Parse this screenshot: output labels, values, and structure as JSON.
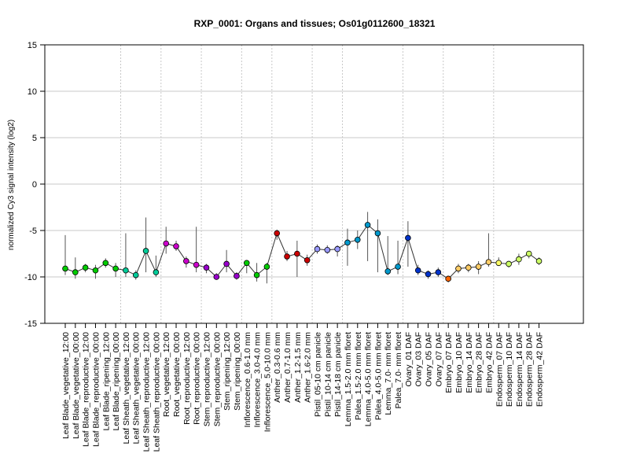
{
  "chart_data": {
    "type": "line",
    "title": "RXP_0001: Organs and tissues; Os01g0112600_18321",
    "xlabel": "",
    "ylabel": "normalized Cy3 signal intensity (log2)",
    "ylim": [
      -15,
      15
    ],
    "yticks": [
      -15,
      -10,
      -5,
      0,
      5,
      10,
      15
    ],
    "grid": true,
    "categories": [
      "Leaf Blade_vegetative_12:00",
      "Leaf Blade_vegetative_00:00",
      "Leaf Blade_reproductive_12:00",
      "Leaf Blade_reproductive_00:00",
      "Leaf Blade_ripening_12:00",
      "Leaf Blade_ripening_00:00",
      "Leaf Sheath_vegetative_12:00",
      "Leaf Sheath_vegetative_00:00",
      "Leaf Sheath_reproductive_12:00",
      "Leaf Sheath_reproductive_00:00",
      "Root_vegetative_12:00",
      "Root_vegetative_00:00",
      "Root_reproductive_12:00",
      "Root_reproductive_00:00",
      "Stem_reproductive_12:00",
      "Stem_reproductive_00:00",
      "Stem_ripening_12:00",
      "Stem_ripening_00:00",
      "Inflorescence_0.6-1.0 mm",
      "Inflorescence_3.0-4.0 mm",
      "Inflorescence_5.0-10.0 mm",
      "Anther_0.3-0.6 mm",
      "Anther_0.7-1.0 mm",
      "Anther_1.2-1.5 mm",
      "Anther_1.6-2.0 mm",
      "Pistil_05-10 cm panicle",
      "Pistil_10-14 cm panicle",
      "Pistil_14-18 cm panicle",
      "Lemma_1.5-2.0 mm floret",
      "Palea_1.5-2.0 mm floret",
      "Lemma_4.0-5.0 mm floret",
      "Palea_4.0-5.0 mm floret",
      "Lemma_7.0- mm floret",
      "Palea_7.0- mm floret",
      "Ovary_01 DAF",
      "Ovary_03 DAF",
      "Ovary_05 DAF",
      "Ovary_07 DAF",
      "Embryo_07 DAF",
      "Embryo_10 DAF",
      "Embryo_14 DAF",
      "Embryo_28 DAF",
      "Embryo_42 DAF",
      "Endosperm_07 DAF",
      "Endosperm_10 DAF",
      "Endosperm_14 DAF",
      "Endosperm_28 DAF",
      "Endosperm_42 DAF"
    ],
    "values": [
      -9.1,
      -9.5,
      -9.0,
      -9.3,
      -8.5,
      -9.1,
      -9.3,
      -9.8,
      -7.2,
      -9.5,
      -6.4,
      -6.7,
      -8.3,
      -8.7,
      -9.0,
      -10.0,
      -8.6,
      -9.9,
      -8.5,
      -9.8,
      -8.9,
      -5.3,
      -7.8,
      -7.5,
      -8.2,
      -7.0,
      -7.1,
      -7.0,
      -6.3,
      -6.0,
      -4.4,
      -5.3,
      -9.4,
      -8.9,
      -5.8,
      -9.3,
      -9.7,
      -9.5,
      -10.2,
      -9.1,
      -9.0,
      -8.9,
      -8.4,
      -8.5,
      -8.6,
      -8.1,
      -7.5,
      -8.3
    ],
    "err_low": [
      -9.8,
      -10.2,
      -9.5,
      -10.2,
      -9.0,
      -10.0,
      -10.0,
      -10.3,
      -9.5,
      -10.0,
      -7.5,
      -7.2,
      -9.0,
      -9.5,
      -9.6,
      -10.3,
      -9.5,
      -10.3,
      -9.6,
      -10.5,
      -10.7,
      -6.0,
      -8.3,
      -10.0,
      -8.8,
      -7.5,
      -7.5,
      -7.8,
      -8.8,
      -7.0,
      -8.3,
      -9.5,
      -9.8,
      -9.7,
      -8.9,
      -9.8,
      -10.2,
      -10.0,
      -10.6,
      -9.6,
      -9.5,
      -9.7,
      -8.9,
      -8.8,
      -9.0,
      -8.7,
      -8.0,
      -8.7
    ],
    "err_high": [
      -5.5,
      -7.9,
      -8.6,
      -8.7,
      -8.0,
      -8.5,
      -5.3,
      -9.3,
      -3.6,
      -7.7,
      -4.6,
      -6.1,
      -7.8,
      -4.6,
      -8.6,
      -9.6,
      -7.1,
      -9.5,
      -8.2,
      -8.5,
      -8.5,
      -4.9,
      -7.2,
      -6.1,
      -7.6,
      -6.5,
      -6.6,
      -6.6,
      -4.8,
      -5.0,
      -3.0,
      -3.8,
      -5.6,
      -6.1,
      -4.0,
      -8.7,
      -9.3,
      -9.0,
      -9.9,
      -8.6,
      -8.6,
      -8.3,
      -5.3,
      -7.9,
      -8.3,
      -7.5,
      -7.2,
      -7.9
    ],
    "point_colors": [
      "#00CC00",
      "#00CC00",
      "#00CC00",
      "#00CC00",
      "#00CC00",
      "#00CC00",
      "#00CC99",
      "#00CC99",
      "#00CC99",
      "#00CC99",
      "#CC00CC",
      "#CC00CC",
      "#CC00CC",
      "#CC00CC",
      "#9900CC",
      "#9900CC",
      "#9900CC",
      "#9900CC",
      "#00CC00",
      "#00CC00",
      "#00CC00",
      "#CC0000",
      "#CC0000",
      "#CC0000",
      "#CC0000",
      "#9999FF",
      "#9999FF",
      "#9999FF",
      "#0099CC",
      "#0099CC",
      "#0099CC",
      "#0099CC",
      "#0099CC",
      "#0099CC",
      "#0033CC",
      "#0033CC",
      "#0033CC",
      "#0033CC",
      "#FF6600",
      "#FFCC66",
      "#FFCC66",
      "#FFCC66",
      "#FFCC66",
      "#FFFF66",
      "#CCFF66",
      "#CCFF66",
      "#CCFF66",
      "#CCFF66"
    ],
    "group_separators_after": [
      5,
      9,
      13,
      17,
      20,
      24,
      27,
      33,
      37,
      42
    ]
  }
}
